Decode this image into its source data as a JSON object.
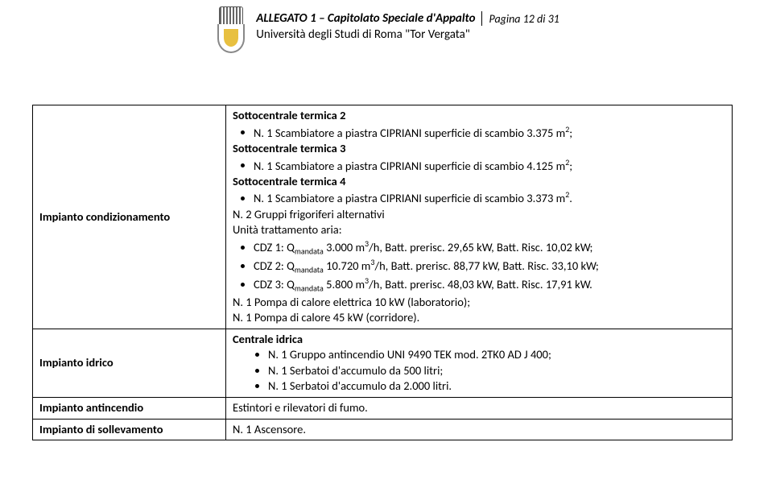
{
  "header": {
    "title": "ALLEGATO 1 – Capitolato Speciale d'Appalto",
    "page": "Pagina 12 di 31",
    "subtitle": "Università degli Studi di Roma \"Tor Vergata\""
  },
  "row1": {
    "label": "Impianto condizionamento",
    "st2_heading": "Sottocentrale termica 2",
    "st2_item": "N. 1 Scambiatore a piastra CIPRIANI superficie di scambio 3.375 m²;",
    "st3_heading": "Sottocentrale termica 3",
    "st3_item": "N. 1 Scambiatore a piastra CIPRIANI superficie di scambio 4.125 m²;",
    "st4_heading": "Sottocentrale termica 4",
    "st4_item": "N. 1 Scambiatore a piastra CIPRIANI superficie di scambio 3.373 m².",
    "gruppi": "N. 2 Gruppi frigoriferi alternativi",
    "unita": "Unità trattamento aria:",
    "cdz1": "CDZ 1: Qmandata 3.000 m³/h, Batt. prerisc. 29,65 kW, Batt. Risc. 10,02 kW;",
    "cdz2": "CDZ 2: Qmandata 10.720 m³/h, Batt. prerisc. 88,77 kW, Batt. Risc. 33,10 kW;",
    "cdz3": "CDZ 3: Qmandata 5.800 m³/h, Batt. prerisc. 48,03 kW, Batt. Risc. 17,91 kW.",
    "pompa1": "N. 1 Pompa di calore elettrica 10 kW (laboratorio);",
    "pompa2": "N. 1 Pompa di calore 45 kW (corridore)."
  },
  "row2": {
    "label": "Impianto idrico",
    "heading": "Centrale idrica",
    "i1": "N. 1 Gruppo antincendio UNI 9490 TEK mod. 2TK0 AD J 400;",
    "i2": "N. 1 Serbatoi d'accumulo da 500 litri;",
    "i3": "N. 1 Serbatoi d'accumulo da 2.000 litri."
  },
  "row3": {
    "label": "Impianto antincendio",
    "text": "Estintori e rilevatori di fumo."
  },
  "row4": {
    "label": "Impianto di sollevamento",
    "text": "N. 1 Ascensore."
  }
}
